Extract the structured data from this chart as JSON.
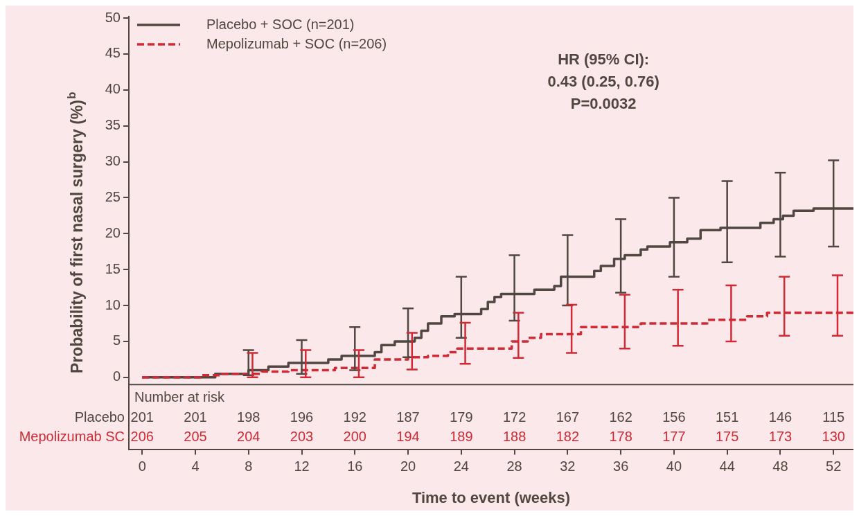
{
  "chart_data": {
    "type": "step",
    "xlabel": "Time to event (weeks)",
    "ylabel": "Probability of first nasal surgery (%)$^{b}$",
    "xlim": [
      -1,
      53.5
    ],
    "xticks": [
      0,
      4,
      8,
      12,
      16,
      20,
      24,
      28,
      32,
      36,
      40,
      44,
      48,
      52
    ],
    "ylim": [
      -10,
      50.2
    ],
    "yticks": [
      0,
      5,
      10,
      15,
      20,
      25,
      30,
      35,
      40,
      45,
      50
    ],
    "grid": false,
    "legend": "top left",
    "ref_lines": [
      {
        "axis": "y",
        "value": -1,
        "color": "#4f4740",
        "line_style": "solid"
      }
    ],
    "annotations": [
      "HR (95% CI):",
      "0.43 (0.25, 0.76)",
      "P=0.0032",
      "Number at risk",
      "Placebo",
      "Mepolizumab SC",
      "201",
      "201",
      "198",
      "196",
      "192",
      "187",
      "179",
      "172",
      "167",
      "162",
      "156",
      "151",
      "146",
      "115",
      "206",
      "205",
      "204",
      "203",
      "200",
      "194",
      "189",
      "188",
      "182",
      "178",
      "177",
      "175",
      "173",
      "130"
    ],
    "series": [
      {
        "name": "Placebo + SOC (n=201)",
        "color": "#4f4740",
        "line_style": "solid",
        "x": [
          0,
          5.5,
          8,
          9.5,
          11,
          12,
          14,
          15,
          16,
          17.5,
          18,
          19,
          20,
          20.5,
          21,
          21.5,
          22.5,
          23.5,
          24,
          25.5,
          26,
          26.5,
          27,
          28,
          29.5,
          31,
          31.5,
          32,
          34,
          34.5,
          35.5,
          36,
          36.3,
          37.5,
          38,
          39.7,
          40,
          41,
          42,
          43.5,
          44,
          46.5,
          47.5,
          48,
          48.2,
          49,
          50.5,
          52,
          53.5
        ],
        "values": [
          0,
          0.5,
          1.0,
          1.5,
          2.0,
          2.0,
          2.5,
          3.0,
          3.0,
          3.5,
          4.5,
          5.0,
          5.0,
          5.5,
          6.5,
          7.5,
          8.5,
          8.8,
          8.8,
          9.5,
          10.5,
          11.2,
          11.6,
          11.6,
          12.2,
          12.7,
          14.0,
          14.0,
          14.8,
          15.5,
          16.5,
          16.5,
          17.0,
          17.8,
          18.2,
          18.8,
          18.8,
          19.3,
          20.5,
          20.8,
          20.8,
          21.5,
          22.0,
          22.0,
          22.5,
          23.2,
          23.5,
          23.5,
          23.5
        ],
        "errors": [
          null,
          null,
          [
            0.3,
            3.8
          ],
          null,
          null,
          [
            0.5,
            5.2
          ],
          null,
          null,
          [
            1,
            7
          ],
          null,
          null,
          null,
          [
            2.8,
            9.6
          ],
          null,
          null,
          null,
          null,
          null,
          [
            5.5,
            14
          ],
          null,
          null,
          null,
          null,
          [
            7.9,
            17
          ],
          null,
          null,
          null,
          [
            10,
            19.8
          ],
          null,
          null,
          null,
          [
            11.8,
            22
          ],
          null,
          null,
          null,
          null,
          [
            14,
            25
          ],
          null,
          null,
          null,
          [
            16,
            27.3
          ],
          null,
          null,
          [
            16.8,
            28.5
          ],
          null,
          null,
          null,
          [
            18.2,
            30.2
          ],
          null
        ]
      },
      {
        "name": "Mepolizumab + SOC (n=206)",
        "color": "#d02a35",
        "line_style": "dashed",
        "x": [
          0,
          4.5,
          6,
          8.3,
          9,
          11,
          12.3,
          14.5,
          16.3,
          17.5,
          20,
          20.3,
          21.5,
          23,
          23.7,
          24.3,
          27.8,
          28.3,
          29,
          30,
          32.3,
          33,
          36.3,
          37.5,
          40.3,
          42.5,
          44.3,
          45.5,
          47,
          48.3,
          52.3,
          53.5
        ],
        "values": [
          0,
          0.3,
          0.5,
          0.5,
          0.8,
          1.0,
          1.0,
          1.3,
          1.3,
          2.5,
          2.8,
          2.8,
          3.0,
          3.5,
          4.0,
          4.0,
          5.0,
          5.0,
          5.5,
          6.0,
          6.0,
          7.0,
          7.0,
          7.5,
          7.5,
          8.0,
          8.0,
          8.5,
          9.0,
          9.0,
          9.0,
          9.0
        ],
        "errors": [
          null,
          null,
          null,
          [
            0,
            3.4
          ],
          null,
          null,
          [
            0,
            3.8
          ],
          null,
          [
            0,
            3.8
          ],
          null,
          null,
          [
            1.1,
            6.2
          ],
          null,
          null,
          null,
          [
            1.9,
            7.6
          ],
          null,
          [
            2.7,
            9
          ],
          null,
          null,
          [
            3.4,
            10.1
          ],
          null,
          [
            4,
            11.5
          ],
          null,
          [
            4.4,
            12.2
          ],
          null,
          [
            5,
            12.8
          ],
          null,
          null,
          [
            5.8,
            14
          ],
          [
            5.8,
            14.2
          ],
          null
        ]
      }
    ]
  }
}
